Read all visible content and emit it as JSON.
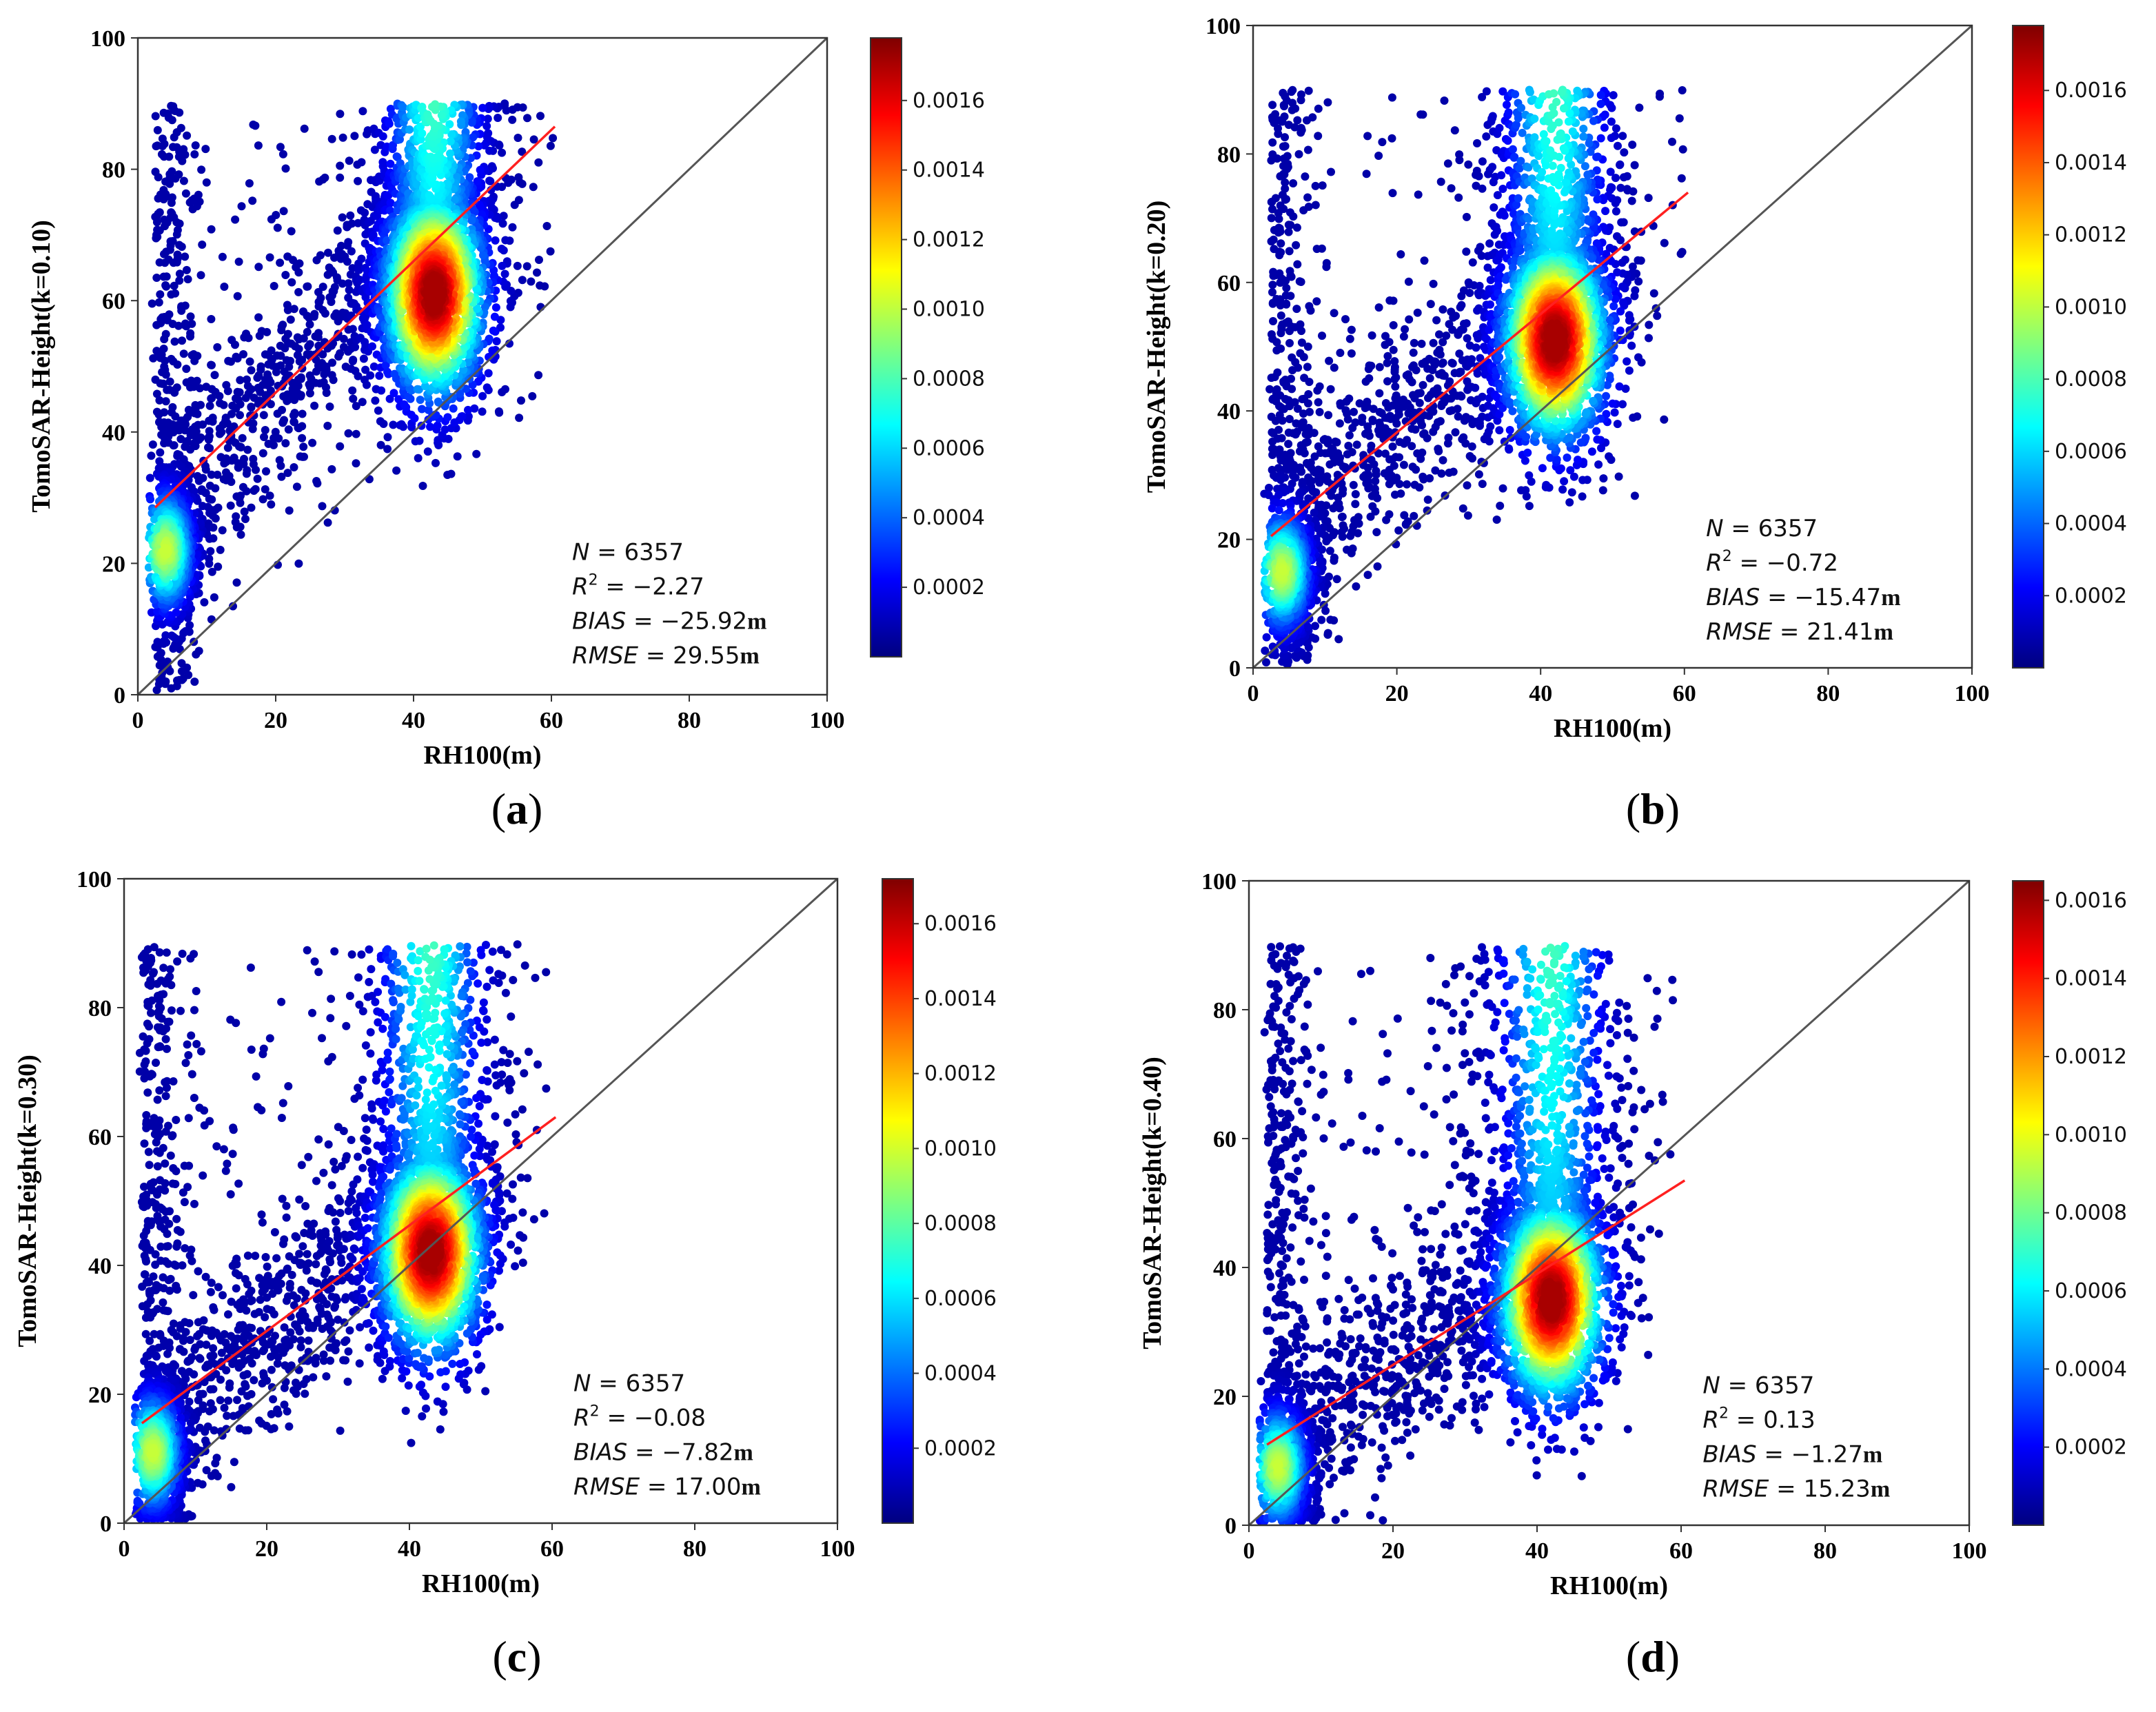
{
  "chart_data": [
    {
      "type": "scatter",
      "panel_label": "a",
      "xlabel": "RH100(m)",
      "ylabel": "TomoSAR-Height(k=0.10)",
      "xlim": [
        0,
        100
      ],
      "ylim": [
        0,
        100
      ],
      "xticks": [
        "0",
        "20",
        "40",
        "60",
        "80",
        "100"
      ],
      "yticks": [
        "0",
        "20",
        "40",
        "60",
        "80",
        "100"
      ],
      "one_to_one_line": {
        "x": [
          0,
          100
        ],
        "y": [
          0,
          100
        ]
      },
      "fit_line": {
        "x": [
          2.5,
          60.5
        ],
        "y": [
          28.5,
          86.5
        ]
      },
      "density_centers": [
        {
          "x": 43,
          "y": 61
        },
        {
          "x": 4,
          "y": 22
        }
      ],
      "upper_cap": 90,
      "colorbar": {
        "ticks": [
          "0.0002",
          "0.0004",
          "0.0006",
          "0.0008",
          "0.0010",
          "0.0012",
          "0.0014",
          "0.0016"
        ],
        "min": 0.0,
        "max": 0.00178
      },
      "stats": {
        "N": "6357",
        "R2": "−2.27",
        "BIAS": "−25.92",
        "RMSE": "29.55",
        "unit": "m"
      }
    },
    {
      "type": "scatter",
      "panel_label": "b",
      "xlabel": "RH100(m)",
      "ylabel": "TomoSAR-Height(k=0.20)",
      "xlim": [
        0,
        100
      ],
      "ylim": [
        0,
        100
      ],
      "xticks": [
        "0",
        "20",
        "40",
        "60",
        "80",
        "100"
      ],
      "yticks": [
        "0",
        "20",
        "40",
        "60",
        "80",
        "100"
      ],
      "one_to_one_line": {
        "x": [
          0,
          100
        ],
        "y": [
          0,
          100
        ]
      },
      "fit_line": {
        "x": [
          2.5,
          60.5
        ],
        "y": [
          20.5,
          74
        ]
      },
      "density_centers": [
        {
          "x": 42,
          "y": 51
        },
        {
          "x": 4,
          "y": 15
        }
      ],
      "upper_cap": 90,
      "colorbar": {
        "ticks": [
          "0.0002",
          "0.0004",
          "0.0006",
          "0.0008",
          "0.0010",
          "0.0012",
          "0.0014",
          "0.0016"
        ],
        "min": 0.0,
        "max": 0.00178
      },
      "stats": {
        "N": "6357",
        "R2": "−0.72",
        "BIAS": "−15.47",
        "RMSE": "21.41",
        "unit": "m"
      }
    },
    {
      "type": "scatter",
      "panel_label": "c",
      "xlabel": "RH100(m)",
      "ylabel": "TomoSAR-Height(k=0.30)",
      "xlim": [
        0,
        100
      ],
      "ylim": [
        0,
        100
      ],
      "xticks": [
        "0",
        "20",
        "40",
        "60",
        "80",
        "100"
      ],
      "yticks": [
        "0",
        "20",
        "40",
        "60",
        "80",
        "100"
      ],
      "one_to_one_line": {
        "x": [
          0,
          100
        ],
        "y": [
          0,
          100
        ]
      },
      "fit_line": {
        "x": [
          2.5,
          60.5
        ],
        "y": [
          15.5,
          63
        ]
      },
      "density_centers": [
        {
          "x": 43,
          "y": 42
        },
        {
          "x": 4,
          "y": 11
        }
      ],
      "upper_cap": 90,
      "colorbar": {
        "ticks": [
          "0.0002",
          "0.0004",
          "0.0006",
          "0.0008",
          "0.0010",
          "0.0012",
          "0.0014",
          "0.0016"
        ],
        "min": 0.0,
        "max": 0.00172
      },
      "stats": {
        "N": "6357",
        "R2": "−0.08",
        "BIAS": "−7.82",
        "RMSE": "17.00",
        "unit": "m"
      }
    },
    {
      "type": "scatter",
      "panel_label": "d",
      "xlabel": "RH100(m)",
      "ylabel": "TomoSAR-Height(k=0.40)",
      "xlim": [
        0,
        100
      ],
      "ylim": [
        0,
        100
      ],
      "xticks": [
        "0",
        "20",
        "40",
        "60",
        "80",
        "100"
      ],
      "yticks": [
        "0",
        "20",
        "40",
        "60",
        "80",
        "100"
      ],
      "one_to_one_line": {
        "x": [
          0,
          100
        ],
        "y": [
          0,
          100
        ]
      },
      "fit_line": {
        "x": [
          2.5,
          60.5
        ],
        "y": [
          12.5,
          53.5
        ]
      },
      "density_centers": [
        {
          "x": 42,
          "y": 35
        },
        {
          "x": 4,
          "y": 9
        }
      ],
      "upper_cap": 90,
      "colorbar": {
        "ticks": [
          "0.0002",
          "0.0004",
          "0.0006",
          "0.0008",
          "0.0010",
          "0.0012",
          "0.0014",
          "0.0016"
        ],
        "min": 0.0,
        "max": 0.00165
      },
      "stats": {
        "N": "6357",
        "R2": "0.13",
        "BIAS": "−1.27",
        "RMSE": "15.23",
        "unit": "m"
      }
    }
  ]
}
